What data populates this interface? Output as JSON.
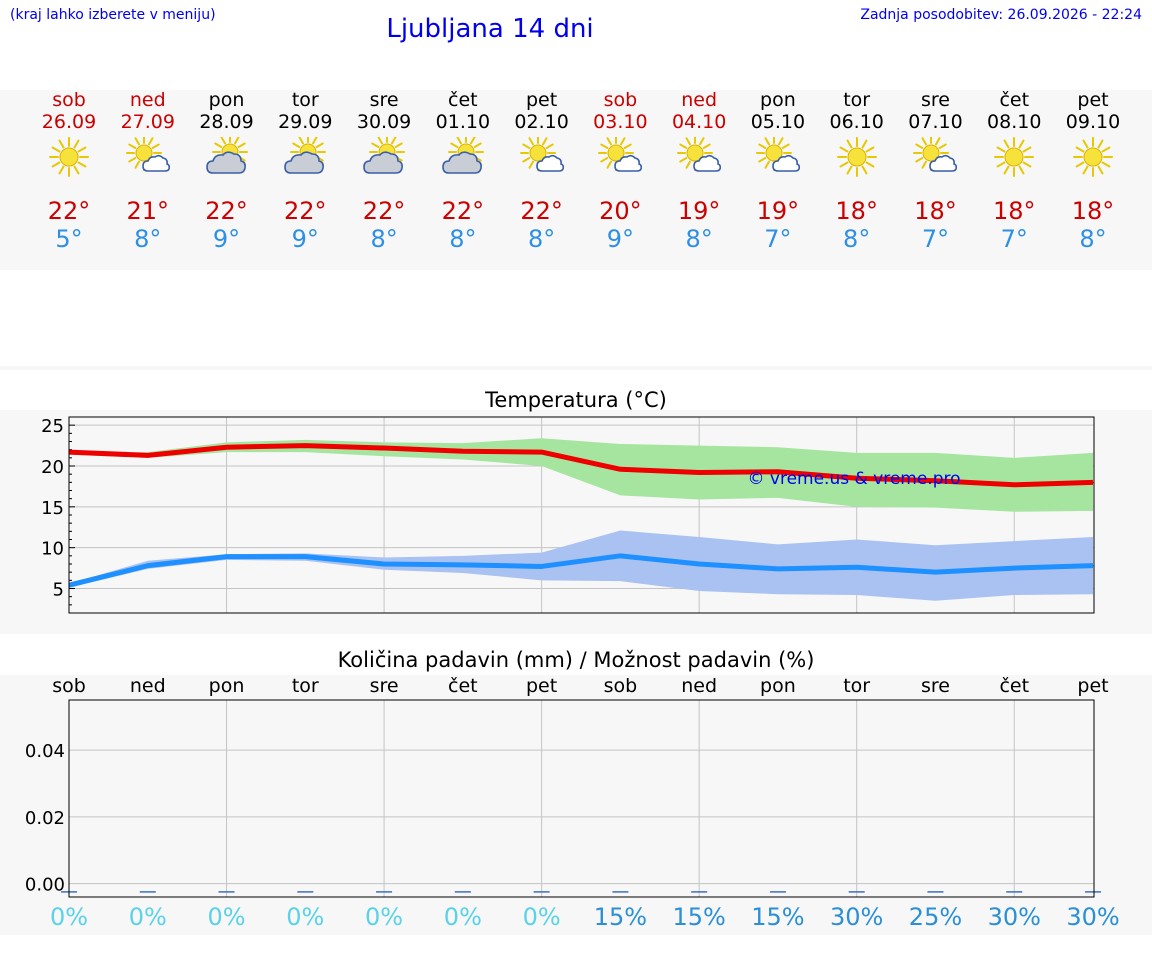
{
  "header": {
    "hint": "(kraj lahko izberete v meniju)",
    "title": "Ljubljana 14 dni",
    "updated": "Zadnja posodobitev: 26.09.2026 - 22:24"
  },
  "colors": {
    "weekend": "#cc0000",
    "weekday": "#000000",
    "tmax": "#ee0000",
    "tmin": "#1e90ff",
    "tmax_band": "#a6e5a0",
    "tmin_band": "#a9c2f2",
    "watermark": "#0000ee",
    "pct_low": "#5ad2e8",
    "pct_high": "#2a8fd6"
  },
  "days": [
    {
      "name": "sob",
      "date": "26.09",
      "weekend": true,
      "icon": "sun-icon",
      "tmax": "22°",
      "tmin": "5°"
    },
    {
      "name": "ned",
      "date": "27.09",
      "weekend": true,
      "icon": "sun-small-cloud-icon",
      "tmax": "21°",
      "tmin": "8°"
    },
    {
      "name": "pon",
      "date": "28.09",
      "weekend": false,
      "icon": "sun-cloud-icon",
      "tmax": "22°",
      "tmin": "9°"
    },
    {
      "name": "tor",
      "date": "29.09",
      "weekend": false,
      "icon": "sun-cloud-icon",
      "tmax": "22°",
      "tmin": "9°"
    },
    {
      "name": "sre",
      "date": "30.09",
      "weekend": false,
      "icon": "sun-cloud-icon",
      "tmax": "22°",
      "tmin": "8°"
    },
    {
      "name": "čet",
      "date": "01.10",
      "weekend": false,
      "icon": "sun-cloud-icon",
      "tmax": "22°",
      "tmin": "8°"
    },
    {
      "name": "pet",
      "date": "02.10",
      "weekend": false,
      "icon": "sun-small-cloud-icon",
      "tmax": "22°",
      "tmin": "8°"
    },
    {
      "name": "sob",
      "date": "03.10",
      "weekend": true,
      "icon": "sun-small-cloud-icon",
      "tmax": "20°",
      "tmin": "9°"
    },
    {
      "name": "ned",
      "date": "04.10",
      "weekend": true,
      "icon": "sun-small-cloud-icon",
      "tmax": "19°",
      "tmin": "8°"
    },
    {
      "name": "pon",
      "date": "05.10",
      "weekend": false,
      "icon": "sun-small-cloud-icon",
      "tmax": "19°",
      "tmin": "7°"
    },
    {
      "name": "tor",
      "date": "06.10",
      "weekend": false,
      "icon": "sun-icon",
      "tmax": "18°",
      "tmin": "8°"
    },
    {
      "name": "sre",
      "date": "07.10",
      "weekend": false,
      "icon": "sun-small-cloud-icon",
      "tmax": "18°",
      "tmin": "7°"
    },
    {
      "name": "čet",
      "date": "08.10",
      "weekend": false,
      "icon": "sun-icon",
      "tmax": "18°",
      "tmin": "7°"
    },
    {
      "name": "pet",
      "date": "09.10",
      "weekend": false,
      "icon": "sun-icon",
      "tmax": "18°",
      "tmin": "8°"
    }
  ],
  "chart_data": [
    {
      "type": "line",
      "title": "Temperatura (°C)",
      "watermark": "© vreme.us & vreme.pro",
      "x": [
        0,
        1,
        2,
        3,
        4,
        5,
        6,
        7,
        8,
        9,
        10,
        11,
        12,
        13
      ],
      "ylim": [
        2,
        26
      ],
      "yticks": [
        5,
        10,
        15,
        20,
        25
      ],
      "grid": true,
      "series": [
        {
          "values": [
            21.7,
            21.3,
            22.3,
            22.5,
            22.2,
            21.8,
            21.7,
            19.6,
            19.2,
            19.3,
            18.5,
            18.2,
            17.7,
            18.0
          ],
          "band_low": [
            21.4,
            21.0,
            21.7,
            21.7,
            21.2,
            20.8,
            20.0,
            16.4,
            15.9,
            16.1,
            15.0,
            14.9,
            14.4,
            14.5
          ],
          "band_high": [
            21.7,
            21.7,
            22.9,
            23.2,
            22.9,
            22.8,
            23.4,
            22.7,
            22.5,
            22.3,
            21.6,
            21.6,
            21.0,
            21.6
          ]
        },
        {
          "values": [
            5.4,
            7.8,
            8.9,
            8.9,
            8.0,
            7.9,
            7.7,
            9.0,
            8.0,
            7.4,
            7.6,
            7.0,
            7.5,
            7.8
          ],
          "band_low": [
            5.1,
            7.4,
            8.5,
            8.4,
            7.3,
            6.9,
            6.0,
            5.9,
            4.7,
            4.3,
            4.2,
            3.5,
            4.2,
            4.3
          ],
          "band_high": [
            5.6,
            8.4,
            9.2,
            9.3,
            8.8,
            9.0,
            9.4,
            12.1,
            11.3,
            10.4,
            11.0,
            10.3,
            10.8,
            11.3
          ]
        }
      ]
    },
    {
      "type": "bar",
      "title": "Količina padavin (mm) / Možnost padavin (%)",
      "categories": [
        "sob",
        "ned",
        "pon",
        "tor",
        "sre",
        "čet",
        "pet",
        "sob",
        "ned",
        "pon",
        "tor",
        "sre",
        "čet",
        "pet"
      ],
      "values": [
        0,
        0,
        0,
        0,
        0,
        0,
        0,
        0,
        0,
        0,
        0,
        0,
        0,
        0
      ],
      "ylim": [
        -0.004,
        0.055
      ],
      "yticks": [
        0.0,
        0.02,
        0.04
      ],
      "ytick_labels": [
        "0.00",
        "0.02",
        "0.04"
      ],
      "grid": true,
      "probability": [
        "0%",
        "0%",
        "0%",
        "0%",
        "0%",
        "0%",
        "0%",
        "15%",
        "15%",
        "15%",
        "30%",
        "25%",
        "30%",
        "30%"
      ]
    }
  ]
}
